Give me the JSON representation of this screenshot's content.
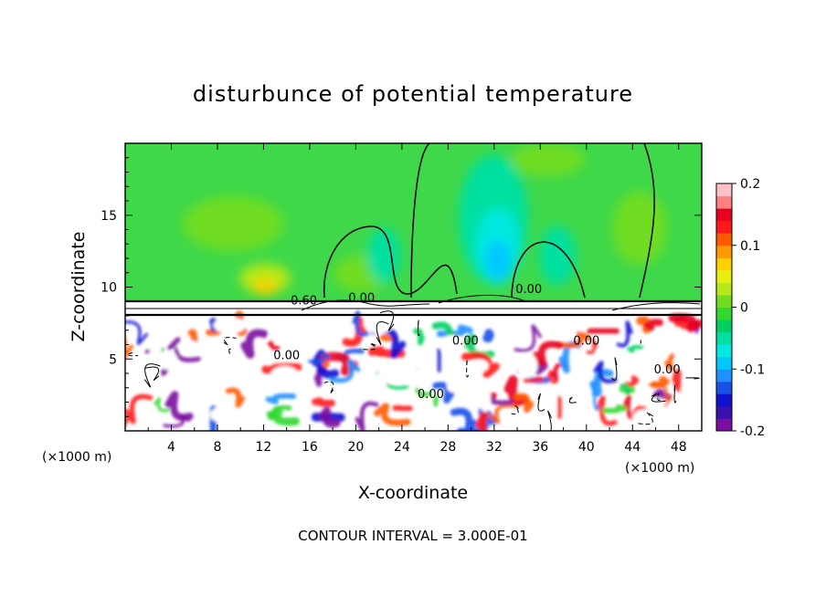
{
  "chart_data": {
    "type": "heatmap",
    "title": "disturbunce of potential temperature",
    "xlabel": "X-coordinate",
    "ylabel": "Z-coordinate",
    "x_unit_left": "(×1000 m)",
    "x_unit_right": "(×1000 m)",
    "xlim": [
      0,
      50
    ],
    "ylim": [
      0,
      20
    ],
    "x_ticks": [
      4,
      8,
      12,
      16,
      20,
      24,
      28,
      32,
      36,
      40,
      44,
      48
    ],
    "x_tick_labels": [
      "4",
      "8",
      "12",
      "16",
      "20",
      "24",
      "28",
      "32",
      "36",
      "40",
      "44",
      "48"
    ],
    "y_ticks": [
      5,
      10,
      15
    ],
    "y_tick_labels": [
      "5",
      "10",
      "15"
    ],
    "colorbar": {
      "min": -0.2,
      "max": 0.2,
      "ticks": [
        0.2,
        0.1,
        0,
        -0.1,
        -0.2
      ],
      "tick_labels": [
        "0.2",
        "0.1",
        "0",
        "-0.1",
        "-0.2"
      ],
      "colors": [
        "#7a0fa0",
        "#3a10b0",
        "#1010d0",
        "#1a50e8",
        "#1e90ff",
        "#00c8ff",
        "#00e8e0",
        "#00e0a0",
        "#00d060",
        "#30d830",
        "#70dd20",
        "#b8e818",
        "#e8ee10",
        "#ffd000",
        "#ff9a00",
        "#ff5a00",
        "#ff1a1a",
        "#e80020",
        "#ff8080",
        "#ffc0c8"
      ]
    },
    "contour_interval_text": "CONTOUR INTERVAL = 3.000E-01",
    "contour_labels": [
      {
        "text": "0.60",
        "x": 15.5,
        "y": 8.8
      },
      {
        "text": "0.00",
        "x": 20.5,
        "y": 9.0
      },
      {
        "text": "0.00",
        "x": 35.0,
        "y": 9.6
      },
      {
        "text": "0.00",
        "x": 14.0,
        "y": 5.0
      },
      {
        "text": "0.00",
        "x": 26.5,
        "y": 2.3
      },
      {
        "text": "0.00",
        "x": 29.5,
        "y": 6.0
      },
      {
        "text": "0.00",
        "x": 40.0,
        "y": 6.0
      },
      {
        "text": "0.00",
        "x": 47.0,
        "y": 4.0
      }
    ]
  }
}
